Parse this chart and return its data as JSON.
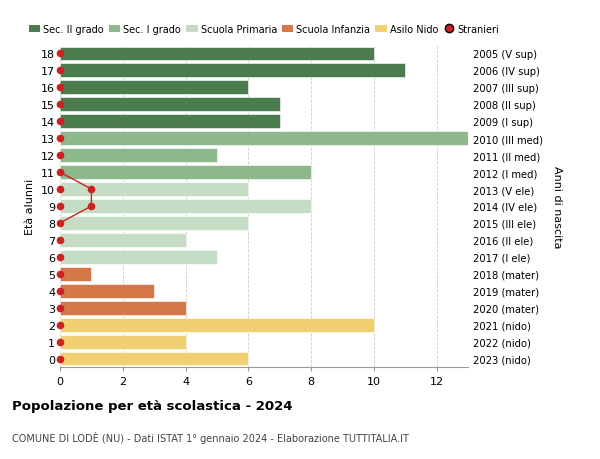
{
  "ages": [
    18,
    17,
    16,
    15,
    14,
    13,
    12,
    11,
    10,
    9,
    8,
    7,
    6,
    5,
    4,
    3,
    2,
    1,
    0
  ],
  "years": [
    "2005 (V sup)",
    "2006 (IV sup)",
    "2007 (III sup)",
    "2008 (II sup)",
    "2009 (I sup)",
    "2010 (III med)",
    "2011 (II med)",
    "2012 (I med)",
    "2013 (V ele)",
    "2014 (IV ele)",
    "2015 (III ele)",
    "2016 (II ele)",
    "2017 (I ele)",
    "2018 (mater)",
    "2019 (mater)",
    "2020 (mater)",
    "2021 (nido)",
    "2022 (nido)",
    "2023 (nido)"
  ],
  "values": [
    10,
    11,
    6,
    7,
    7,
    13,
    5,
    8,
    6,
    8,
    6,
    4,
    5,
    1,
    3,
    4,
    10,
    4,
    6
  ],
  "colors": [
    "#4a7c4e",
    "#4a7c4e",
    "#4a7c4e",
    "#4a7c4e",
    "#4a7c4e",
    "#8cb88c",
    "#8cb88c",
    "#8cb88c",
    "#c5ddc5",
    "#c5ddc5",
    "#c5ddc5",
    "#c5ddc5",
    "#c5ddc5",
    "#d4784a",
    "#d4784a",
    "#d4784a",
    "#f0d070",
    "#f0d070",
    "#f0d070"
  ],
  "stranieri_line_x": [
    0,
    1,
    1,
    0
  ],
  "stranieri_line_y": [
    11,
    10,
    9,
    8
  ],
  "stranieri_dot_x": [
    0,
    0,
    1,
    1,
    0,
    0,
    0,
    0,
    0,
    0,
    0,
    0,
    0,
    0,
    0,
    0,
    0,
    0,
    0
  ],
  "legend_labels": [
    "Sec. II grado",
    "Sec. I grado",
    "Scuola Primaria",
    "Scuola Infanzia",
    "Asilo Nido",
    "Stranieri"
  ],
  "legend_colors": [
    "#4a7c4e",
    "#8cb88c",
    "#c5ddc5",
    "#d4784a",
    "#f0d070",
    "#cc2222"
  ],
  "title_bold": "Popolazione per età scolastica - 2024",
  "subtitle": "COMUNE DI LODÈ (NU) - Dati ISTAT 1° gennaio 2024 - Elaborazione TUTTITALIA.IT",
  "ylabel_left": "Età alunni",
  "ylabel_right": "Anni di nascita",
  "xlim_max": 13,
  "xticks": [
    0,
    2,
    4,
    6,
    8,
    10,
    12
  ],
  "background_color": "#ffffff",
  "bar_height": 0.82,
  "stranieri_color": "#cc2222"
}
